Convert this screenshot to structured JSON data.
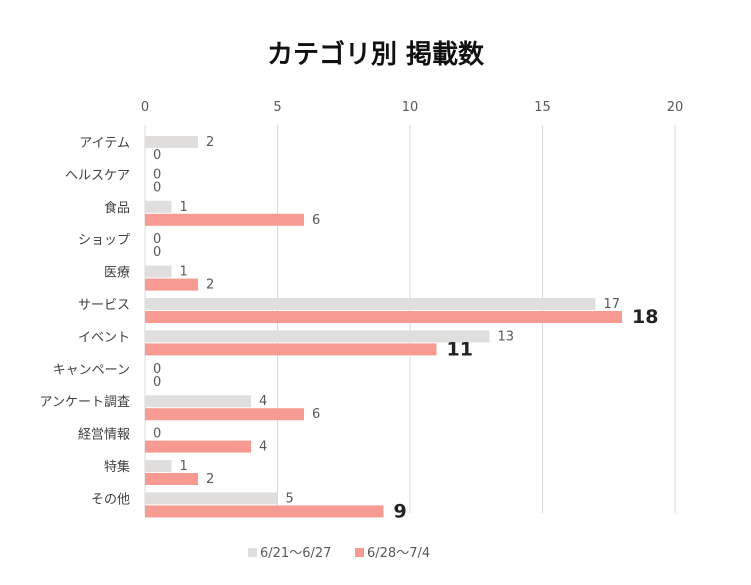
{
  "chart_data": {
    "type": "bar",
    "orientation": "horizontal",
    "title": "カテゴリ別 掲載数",
    "xlabel": "",
    "ylabel": "",
    "xlim": [
      0,
      20
    ],
    "xticks": [
      0,
      5,
      10,
      15,
      20
    ],
    "grid": true,
    "legend_position": "bottom",
    "categories": [
      "アイテム",
      "ヘルスケア",
      "食品",
      "ショップ",
      "医療",
      "サービス",
      "イベント",
      "キャンペーン",
      "アンケート調査",
      "経営情報",
      "特集",
      "その他"
    ],
    "series": [
      {
        "name": "6/21〜6/27",
        "color": "#e1dfdd",
        "values": [
          2,
          0,
          1,
          0,
          1,
          17,
          13,
          0,
          4,
          0,
          1,
          5
        ]
      },
      {
        "name": "6/28〜7/4",
        "color": "#f79b92",
        "values": [
          0,
          0,
          6,
          0,
          2,
          18,
          11,
          0,
          6,
          4,
          2,
          9
        ]
      }
    ],
    "highlighted_labels": [
      {
        "category": "サービス",
        "series": 1
      },
      {
        "category": "イベント",
        "series": 1
      },
      {
        "category": "その他",
        "series": 1
      }
    ]
  }
}
